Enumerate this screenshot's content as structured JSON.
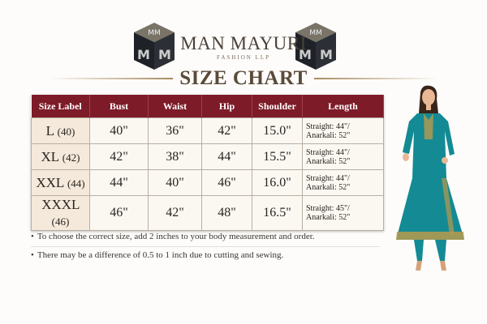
{
  "brand": {
    "name": "MAN MAYURI",
    "subtitle": "FASHION LLP",
    "logo_text": "MM"
  },
  "title": "SIZE CHART",
  "table": {
    "headers": [
      "Size Label",
      "Bust",
      "Waist",
      "Hip",
      "Shoulder",
      "Length"
    ],
    "rows": [
      {
        "size": "L",
        "code": "(40)",
        "bust": "40\"",
        "waist": "36\"",
        "hip": "42\"",
        "shoulder": "15.0\"",
        "length_straight": "Straight: 44\"/",
        "length_anarkali": "Anarkali: 52\""
      },
      {
        "size": "XL",
        "code": "(42)",
        "bust": "42\"",
        "waist": "38\"",
        "hip": "44\"",
        "shoulder": "15.5\"",
        "length_straight": "Straight: 44\"/",
        "length_anarkali": "Anarkali: 52\""
      },
      {
        "size": "XXL",
        "code": "(44)",
        "bust": "44\"",
        "waist": "40\"",
        "hip": "46\"",
        "shoulder": "16.0\"",
        "length_straight": "Straight: 44\"/",
        "length_anarkali": "Anarkali: 52\""
      },
      {
        "size": "XXXL",
        "code": "(46)",
        "bust": "46\"",
        "waist": "42\"",
        "hip": "48\"",
        "shoulder": "16.5\"",
        "length_straight": "Straight: 45\"/",
        "length_anarkali": "Anarkali: 52\""
      }
    ]
  },
  "notes": [
    "To choose the correct size, add 2 inches to your body measurement and order.",
    "There may be a difference of 0.5 to 1 inch due to cutting and sewing."
  ],
  "bullet": "•",
  "colors": {
    "header": "#7e1b28",
    "dress": "#138a94",
    "gold": "#b99a4c"
  }
}
